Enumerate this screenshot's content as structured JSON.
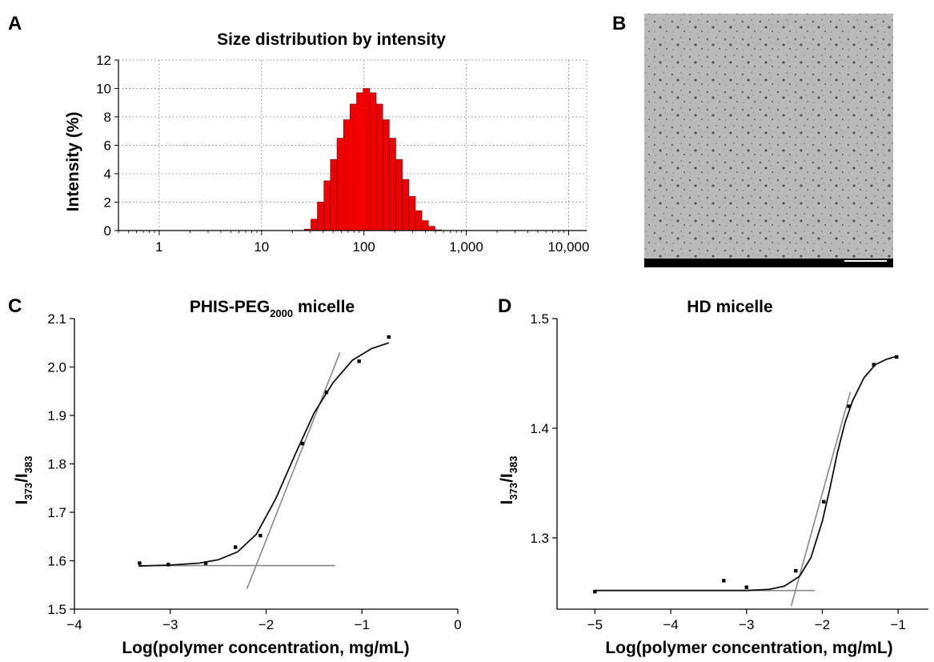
{
  "panels": {
    "a": {
      "label": "A"
    },
    "b": {
      "label": "B"
    },
    "c": {
      "label": "C"
    },
    "d": {
      "label": "D"
    }
  },
  "chart_data": [
    {
      "panel": "A",
      "type": "bar",
      "title": "Size distribution by intensity",
      "xlabel": "",
      "ylabel": "Intensity (%)",
      "xscale": "log",
      "xlim": [
        0.4,
        15000
      ],
      "ylim": [
        0,
        12
      ],
      "grid": true,
      "xticks": [
        "1",
        "10",
        "100",
        "1,000",
        "10,000"
      ],
      "yticks": [
        "0",
        "2",
        "4",
        "6",
        "8",
        "10",
        "12"
      ],
      "color": "#ee0000",
      "bins": [
        {
          "x": 28.2,
          "y": 0.1
        },
        {
          "x": 32.7,
          "y": 0.8
        },
        {
          "x": 37.8,
          "y": 2.0
        },
        {
          "x": 43.8,
          "y": 3.5
        },
        {
          "x": 50.7,
          "y": 5.0
        },
        {
          "x": 58.8,
          "y": 6.5
        },
        {
          "x": 68.1,
          "y": 7.8
        },
        {
          "x": 78.8,
          "y": 8.9
        },
        {
          "x": 91.3,
          "y": 9.7
        },
        {
          "x": 105.7,
          "y": 10.0
        },
        {
          "x": 122.4,
          "y": 9.7
        },
        {
          "x": 141.8,
          "y": 8.9
        },
        {
          "x": 164.2,
          "y": 7.8
        },
        {
          "x": 190.1,
          "y": 6.5
        },
        {
          "x": 220.2,
          "y": 5.0
        },
        {
          "x": 255.0,
          "y": 3.6
        },
        {
          "x": 295.3,
          "y": 2.4
        },
        {
          "x": 342.0,
          "y": 1.4
        },
        {
          "x": 396.1,
          "y": 0.7
        },
        {
          "x": 458.7,
          "y": 0.3
        },
        {
          "x": 531.2,
          "y": 0.05
        }
      ]
    },
    {
      "panel": "C",
      "type": "scatter",
      "title_main": "PHIS-PEG",
      "title_sub": "2000",
      "title_tail": " micelle",
      "xlabel": "Log(polymer concentration, mg/mL)",
      "ylabel_main": "I",
      "ylabel_sub1": "373",
      "ylabel_mid": "/I",
      "ylabel_sub2": "383",
      "xlim": [
        -4,
        0
      ],
      "ylim": [
        1.5,
        2.1
      ],
      "xticks": [
        "−4",
        "−3",
        "−2",
        "−1",
        "0"
      ],
      "yticks": [
        "1.5",
        "1.6",
        "1.7",
        "1.8",
        "1.9",
        "2.0",
        "2.1"
      ],
      "points": [
        {
          "x": -3.32,
          "y": 1.595
        },
        {
          "x": -3.02,
          "y": 1.592
        },
        {
          "x": -2.63,
          "y": 1.595
        },
        {
          "x": -2.32,
          "y": 1.628
        },
        {
          "x": -2.06,
          "y": 1.652
        },
        {
          "x": -1.62,
          "y": 1.842
        },
        {
          "x": -1.37,
          "y": 1.948
        },
        {
          "x": -1.03,
          "y": 2.012
        },
        {
          "x": -0.72,
          "y": 2.062
        }
      ],
      "fit_curve": [
        {
          "x": -3.33,
          "y": 1.589
        },
        {
          "x": -3.0,
          "y": 1.591
        },
        {
          "x": -2.7,
          "y": 1.595
        },
        {
          "x": -2.5,
          "y": 1.602
        },
        {
          "x": -2.3,
          "y": 1.618
        },
        {
          "x": -2.1,
          "y": 1.655
        },
        {
          "x": -1.9,
          "y": 1.728
        },
        {
          "x": -1.7,
          "y": 1.818
        },
        {
          "x": -1.5,
          "y": 1.905
        },
        {
          "x": -1.3,
          "y": 1.968
        },
        {
          "x": -1.1,
          "y": 2.014
        },
        {
          "x": -0.9,
          "y": 2.038
        },
        {
          "x": -0.72,
          "y": 2.05
        }
      ],
      "baseline": [
        {
          "x": -3.33,
          "y": 1.59
        },
        {
          "x": -1.28,
          "y": 1.59
        }
      ],
      "tangent": [
        {
          "x": -2.2,
          "y": 1.542
        },
        {
          "x": -1.23,
          "y": 2.03
        }
      ]
    },
    {
      "panel": "D",
      "type": "scatter",
      "title": "HD micelle",
      "xlabel": "Log(polymer concentration, mg/mL)",
      "ylabel_main": "I",
      "ylabel_sub1": "373",
      "ylabel_mid": "/I",
      "ylabel_sub2": "383",
      "xlim": [
        -5.5,
        -0.6
      ],
      "ylim": [
        1.235,
        1.5
      ],
      "xticks": [
        "−5",
        "−4",
        "−3",
        "−2",
        "−1"
      ],
      "yticks": [
        "1.3",
        "1.4",
        "1.5"
      ],
      "ytick_values": [
        1.3,
        1.4,
        1.5
      ],
      "points": [
        {
          "x": -5.0,
          "y": 1.251
        },
        {
          "x": -3.3,
          "y": 1.261
        },
        {
          "x": -3.0,
          "y": 1.255
        },
        {
          "x": -2.35,
          "y": 1.27
        },
        {
          "x": -1.98,
          "y": 1.333
        },
        {
          "x": -1.65,
          "y": 1.42
        },
        {
          "x": -1.32,
          "y": 1.458
        },
        {
          "x": -1.02,
          "y": 1.465
        }
      ],
      "fit_curve": [
        {
          "x": -5.0,
          "y": 1.252
        },
        {
          "x": -4.0,
          "y": 1.252
        },
        {
          "x": -3.0,
          "y": 1.252
        },
        {
          "x": -2.7,
          "y": 1.253
        },
        {
          "x": -2.5,
          "y": 1.256
        },
        {
          "x": -2.3,
          "y": 1.265
        },
        {
          "x": -2.15,
          "y": 1.282
        },
        {
          "x": -2.0,
          "y": 1.315
        },
        {
          "x": -1.9,
          "y": 1.345
        },
        {
          "x": -1.8,
          "y": 1.378
        },
        {
          "x": -1.7,
          "y": 1.405
        },
        {
          "x": -1.6,
          "y": 1.425
        },
        {
          "x": -1.45,
          "y": 1.446
        },
        {
          "x": -1.3,
          "y": 1.458
        },
        {
          "x": -1.15,
          "y": 1.463
        },
        {
          "x": -1.0,
          "y": 1.466
        }
      ],
      "baseline": [
        {
          "x": -5.0,
          "y": 1.252
        },
        {
          "x": -2.1,
          "y": 1.252
        }
      ],
      "tangent": [
        {
          "x": -2.41,
          "y": 1.238
        },
        {
          "x": -1.63,
          "y": 1.433
        }
      ]
    }
  ]
}
